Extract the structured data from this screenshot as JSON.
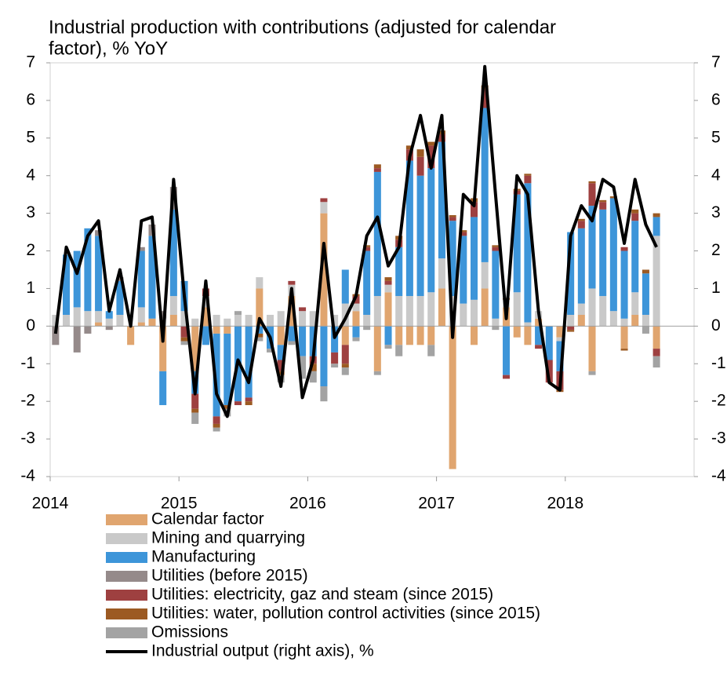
{
  "chart_data": {
    "type": "stacked-bar-line",
    "title": [
      "Industrial production with contributions (adjusted for calendar",
      "factor), % YoY"
    ],
    "categories": [
      "2014",
      null,
      null,
      null,
      null,
      null,
      null,
      null,
      null,
      null,
      null,
      null,
      "2015",
      null,
      null,
      null,
      null,
      null,
      null,
      null,
      null,
      null,
      null,
      null,
      "2016",
      null,
      null,
      null,
      null,
      null,
      null,
      null,
      null,
      null,
      null,
      null,
      "2017",
      null,
      null,
      null,
      null,
      null,
      null,
      null,
      null,
      null,
      null,
      null,
      "2018",
      null,
      null,
      null,
      null,
      null,
      null,
      null,
      null,
      null,
      null,
      null
    ],
    "ylim": [
      -4,
      7
    ],
    "yticks": [
      -4,
      -3,
      -2,
      -1,
      0,
      1,
      2,
      3,
      4,
      5,
      6,
      7
    ],
    "y2lim": [
      -4,
      7
    ],
    "y2ticks": [
      -4,
      -3,
      -2,
      -1,
      0,
      1,
      2,
      3,
      4,
      5,
      6,
      7
    ],
    "series": [
      {
        "name": "Calendar factor",
        "color": "#e0a56f",
        "kind": "bar",
        "values": [
          0,
          0,
          0,
          0,
          0.1,
          0,
          0,
          -0.5,
          0.1,
          0.2,
          -1.2,
          0.3,
          0,
          -1.2,
          0.5,
          -0.2,
          -0.2,
          0,
          0,
          1.0,
          0,
          -0.5,
          0.8,
          0,
          0,
          3.0,
          0,
          -0.5,
          0.4,
          0,
          -1.2,
          0.9,
          -0.5,
          -0.5,
          -0.5,
          -0.5,
          1.0,
          -3.8,
          0,
          -0.5,
          1.0,
          0,
          0.5,
          -0.3,
          -0.5,
          0.2,
          0,
          -0.3,
          0,
          0.3,
          -1.2,
          0,
          0,
          -0.6,
          0.3,
          0,
          -0.6,
          null,
          null,
          null
        ]
      },
      {
        "name": "Mining and quarrying",
        "color": "#c9c9c9",
        "kind": "bar",
        "values": [
          0.3,
          0.3,
          0.5,
          0.4,
          0.3,
          0.2,
          0.3,
          0,
          0.4,
          0,
          0.2,
          0.5,
          0.4,
          0.2,
          0.3,
          0.3,
          0.2,
          0.3,
          0.3,
          0.3,
          0.3,
          0.4,
          0.3,
          0.4,
          0.4,
          0.3,
          0.3,
          0.6,
          0.2,
          0.3,
          0.8,
          0.2,
          0.8,
          0.8,
          0.8,
          0.9,
          0.8,
          0.8,
          0.6,
          0.7,
          0.7,
          0.2,
          0.2,
          0.9,
          0.1,
          0.2,
          0,
          -0.1,
          0.3,
          0.3,
          1.0,
          0.8,
          0.4,
          0.2,
          0.6,
          0.3,
          2.4,
          null,
          null,
          null
        ]
      },
      {
        "name": "Manufacturing",
        "color": "#3d95d9",
        "kind": "bar",
        "values": [
          0,
          1.6,
          1.5,
          2.2,
          2.0,
          0.2,
          0.9,
          0,
          1.5,
          2.2,
          -0.9,
          2.3,
          0.8,
          -0.6,
          -0.5,
          -2.2,
          -1.9,
          -2.0,
          -1.9,
          -0.2,
          -0.6,
          -0.4,
          -0.4,
          -0.8,
          -0.8,
          -1.6,
          -0.7,
          0.9,
          -0.3,
          1.7,
          3.3,
          -0.5,
          1.3,
          3.6,
          3.2,
          3.3,
          3.1,
          2.0,
          1.8,
          2.2,
          4.1,
          1.8,
          -1.3,
          2.6,
          3.7,
          -0.5,
          -0.9,
          -0.8,
          2.2,
          2.0,
          2.2,
          2.3,
          3.0,
          1.8,
          1.9,
          1.1,
          0.5,
          null,
          null,
          null
        ]
      },
      {
        "name": "Utilities (before 2015)",
        "color": "#958a8a",
        "kind": "bar",
        "values": [
          -0.5,
          0,
          -0.7,
          -0.2,
          0.15,
          -0.1,
          0.1,
          0,
          0.1,
          0.3,
          0.2,
          0.6,
          0,
          0,
          0,
          0,
          0,
          0,
          0,
          0,
          0,
          0,
          0,
          0,
          0,
          0,
          0,
          0,
          0,
          0,
          0,
          0,
          0,
          0,
          0,
          0,
          0,
          0,
          0,
          0,
          0,
          0,
          0,
          0,
          0,
          0,
          0,
          0,
          0,
          0,
          0,
          0,
          0,
          0,
          0,
          0,
          0,
          null,
          null,
          null
        ]
      },
      {
        "name": "Utilities: electricity, gaz and steam (since 2015)",
        "color": "#9e4040",
        "kind": "bar",
        "values": [
          0,
          0,
          0,
          0,
          0,
          0,
          0,
          0,
          0,
          0,
          0,
          0,
          -0.3,
          -0.4,
          0.2,
          -0.2,
          0,
          -0.1,
          -0.1,
          0,
          0,
          -0.3,
          0.1,
          0.1,
          -0.2,
          0.1,
          -0.3,
          -0.5,
          0.2,
          0.1,
          0.1,
          0.1,
          0.2,
          0.3,
          0.5,
          0.6,
          0.2,
          0.1,
          0.1,
          0.4,
          0.5,
          0.1,
          -0.1,
          0.1,
          0.2,
          -0.1,
          -0.6,
          -0.5,
          -0.1,
          0.2,
          0.6,
          0.2,
          0,
          0.1,
          0.2,
          0,
          -0.2,
          null,
          null,
          null
        ]
      },
      {
        "name": "Utilities: water, pollution control activities (since 2015)",
        "color": "#9c5a22",
        "kind": "bar",
        "values": [
          0,
          0,
          0,
          0,
          0,
          0,
          0,
          0,
          0,
          0,
          0,
          0,
          -0.1,
          -0.1,
          0,
          -0.1,
          -0.1,
          0,
          -0.1,
          -0.1,
          0,
          -0.1,
          0,
          0,
          -0.2,
          0,
          0,
          -0.1,
          0.05,
          0.05,
          0.1,
          0.1,
          0.1,
          0.1,
          0.2,
          0.1,
          0.1,
          0.05,
          0.05,
          0.1,
          0.1,
          0.05,
          0.05,
          0.05,
          0.05,
          0,
          0,
          -0.05,
          -0.05,
          0.05,
          0.05,
          0.05,
          0.05,
          -0.05,
          0.1,
          0.1,
          0.1,
          null,
          null,
          null
        ]
      },
      {
        "name": "Omissions",
        "color": "#a3a3a3",
        "kind": "bar",
        "values": [
          0,
          0,
          0,
          0,
          0,
          0,
          0,
          0,
          0,
          0,
          0,
          0,
          -0.1,
          -0.3,
          0,
          -0.1,
          -0.2,
          0.1,
          0,
          -0.1,
          -0.1,
          -0.2,
          -0.1,
          -0.6,
          -0.3,
          -0.4,
          -0.1,
          -0.2,
          -0.1,
          -0.1,
          -0.1,
          -0.1,
          -0.3,
          0,
          0,
          -0.3,
          0,
          0,
          0,
          0,
          0,
          -0.1,
          0,
          0,
          0,
          0,
          0,
          0,
          0,
          0,
          -0.1,
          0,
          0,
          0,
          0,
          -0.2,
          -0.3,
          null,
          null,
          null
        ]
      },
      {
        "name": "Industrial output (right axis), %",
        "color": "#000000",
        "kind": "line",
        "axis": "y2",
        "values": [
          -0.2,
          2.1,
          1.4,
          2.4,
          2.8,
          0.4,
          1.5,
          0,
          2.8,
          2.9,
          -0.4,
          3.9,
          0.8,
          -1.8,
          1.2,
          -1.8,
          -2.4,
          -0.9,
          -1.5,
          0.2,
          -0.3,
          -1.6,
          1.0,
          -1.9,
          -0.9,
          2.2,
          -0.3,
          0.2,
          0.8,
          2.4,
          2.9,
          1.6,
          2.1,
          4.5,
          5.6,
          4.2,
          5.6,
          -0.3,
          3.5,
          3.2,
          6.9,
          3.5,
          0.2,
          4.0,
          3.5,
          0.4,
          -1.5,
          -1.7,
          2.4,
          3.2,
          2.8,
          3.9,
          3.7,
          2.2,
          3.9,
          2.7,
          2.1,
          null,
          null,
          null
        ]
      }
    ]
  }
}
